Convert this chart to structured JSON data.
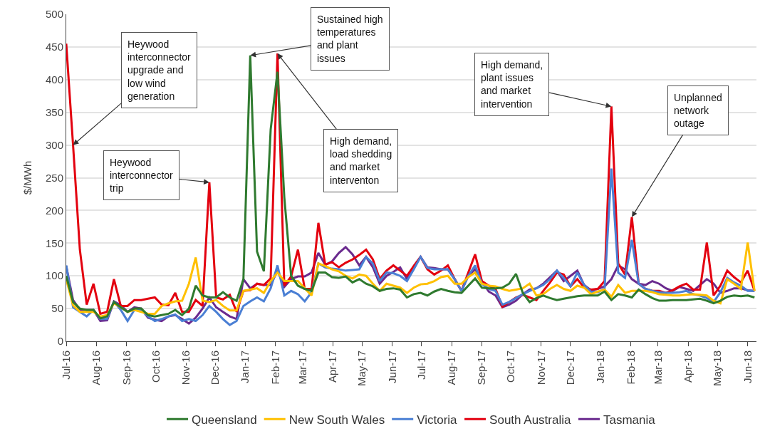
{
  "chart_data": {
    "type": "line",
    "ylabel": "$/MWh",
    "marker": "none",
    "line_style": "solid",
    "grid": "y",
    "legend": "bottom",
    "x": [
      "2016-07-01",
      "2016-07-08",
      "2016-07-15",
      "2016-07-22",
      "2016-07-29",
      "2016-08-05",
      "2016-08-12",
      "2016-08-19",
      "2016-08-26",
      "2016-09-02",
      "2016-09-09",
      "2016-09-16",
      "2016-09-23",
      "2016-09-30",
      "2016-10-07",
      "2016-10-14",
      "2016-10-21",
      "2016-10-28",
      "2016-11-04",
      "2016-11-11",
      "2016-11-18",
      "2016-11-25",
      "2016-12-02",
      "2016-12-09",
      "2016-12-16",
      "2016-12-23",
      "2016-12-30",
      "2017-01-06",
      "2017-01-13",
      "2017-01-20",
      "2017-01-27",
      "2017-02-03",
      "2017-02-10",
      "2017-02-17",
      "2017-02-24",
      "2017-03-03",
      "2017-03-10",
      "2017-03-17",
      "2017-03-24",
      "2017-03-31",
      "2017-04-07",
      "2017-04-14",
      "2017-04-21",
      "2017-04-28",
      "2017-05-05",
      "2017-05-12",
      "2017-05-19",
      "2017-05-26",
      "2017-06-02",
      "2017-06-09",
      "2017-06-16",
      "2017-06-23",
      "2017-06-30",
      "2017-07-07",
      "2017-07-14",
      "2017-07-21",
      "2017-07-28",
      "2017-08-04",
      "2017-08-11",
      "2017-08-18",
      "2017-08-25",
      "2017-09-01",
      "2017-09-08",
      "2017-09-15",
      "2017-09-22",
      "2017-09-29",
      "2017-10-06",
      "2017-10-13",
      "2017-10-20",
      "2017-10-27",
      "2017-11-03",
      "2017-11-10",
      "2017-11-17",
      "2017-11-24",
      "2017-12-01",
      "2017-12-08",
      "2017-12-15",
      "2017-12-22",
      "2017-12-29",
      "2018-01-05",
      "2018-01-12",
      "2018-01-19",
      "2018-01-26",
      "2018-02-02",
      "2018-02-09",
      "2018-02-16",
      "2018-02-23",
      "2018-03-02",
      "2018-03-09",
      "2018-03-16",
      "2018-03-23",
      "2018-03-30",
      "2018-04-06",
      "2018-04-13",
      "2018-04-20",
      "2018-04-27",
      "2018-05-04",
      "2018-05-11",
      "2018-05-18",
      "2018-05-25",
      "2018-06-01",
      "2018-06-08"
    ],
    "xlim": [
      "2016-07-01",
      "2018-06-10"
    ],
    "xticks": [
      {
        "value": "2016-07-01",
        "label": "Jul-16"
      },
      {
        "value": "2016-08-01",
        "label": "Aug-16"
      },
      {
        "value": "2016-09-01",
        "label": "Sep-16"
      },
      {
        "value": "2016-10-01",
        "label": "Oct-16"
      },
      {
        "value": "2016-11-01",
        "label": "Nov-16"
      },
      {
        "value": "2016-12-01",
        "label": "Dec-16"
      },
      {
        "value": "2017-01-01",
        "label": "Jan-17"
      },
      {
        "value": "2017-02-01",
        "label": "Feb-17"
      },
      {
        "value": "2017-03-01",
        "label": "Mar-17"
      },
      {
        "value": "2017-04-01",
        "label": "Apr-17"
      },
      {
        "value": "2017-05-01",
        "label": "May-17"
      },
      {
        "value": "2017-06-01",
        "label": "Jun-17"
      },
      {
        "value": "2017-07-01",
        "label": "Jul-17"
      },
      {
        "value": "2017-08-01",
        "label": "Aug-17"
      },
      {
        "value": "2017-09-01",
        "label": "Sep-17"
      },
      {
        "value": "2017-10-01",
        "label": "Oct-17"
      },
      {
        "value": "2017-11-01",
        "label": "Nov-17"
      },
      {
        "value": "2017-12-01",
        "label": "Dec-17"
      },
      {
        "value": "2018-01-01",
        "label": "Jan-18"
      },
      {
        "value": "2018-02-01",
        "label": "Feb-18"
      },
      {
        "value": "2018-03-01",
        "label": "Mar-18"
      },
      {
        "value": "2018-04-01",
        "label": "Apr-18"
      },
      {
        "value": "2018-05-01",
        "label": "May-18"
      },
      {
        "value": "2018-06-01",
        "label": "Jun-18"
      }
    ],
    "ylim": [
      0,
      500
    ],
    "yticks": [
      0,
      50,
      100,
      150,
      200,
      250,
      300,
      350,
      400,
      450,
      500
    ],
    "series": [
      {
        "name": "Queensland",
        "color": "#2f7a2f",
        "values": [
          100,
          60,
          50,
          48,
          48,
          35,
          38,
          60,
          52,
          45,
          50,
          50,
          40,
          38,
          40,
          42,
          48,
          40,
          50,
          85,
          70,
          67,
          67,
          75,
          67,
          62,
          95,
          437,
          137,
          107,
          324,
          412,
          220,
          100,
          85,
          80,
          77,
          105,
          105,
          98,
          97,
          99,
          90,
          95,
          88,
          84,
          77,
          80,
          81,
          79,
          67,
          72,
          74,
          70,
          76,
          80,
          77,
          75,
          74,
          85,
          96,
          82,
          81,
          81,
          82,
          88,
          103,
          74,
          60,
          66,
          70,
          66,
          63,
          65,
          67,
          69,
          70,
          70,
          70,
          76,
          63,
          72,
          70,
          67,
          79,
          72,
          66,
          62,
          62,
          63,
          63,
          63,
          64,
          65,
          62,
          58,
          62,
          68,
          70,
          69,
          70,
          67
        ]
      },
      {
        "name": "New South Wales",
        "color": "#ffc000",
        "values": [
          95,
          55,
          45,
          45,
          45,
          38,
          40,
          58,
          52,
          45,
          48,
          45,
          42,
          42,
          54,
          58,
          61,
          62,
          88,
          128,
          62,
          60,
          63,
          54,
          47,
          47,
          77,
          79,
          81,
          74,
          92,
          105,
          92,
          92,
          92,
          81,
          70,
          119,
          115,
          110,
          107,
          100,
          96,
          102,
          100,
          88,
          77,
          88,
          85,
          82,
          74,
          82,
          87,
          88,
          92,
          98,
          100,
          88,
          88,
          98,
          105,
          88,
          85,
          84,
          80,
          77,
          79,
          81,
          88,
          70,
          72,
          80,
          86,
          80,
          77,
          85,
          82,
          72,
          76,
          79,
          68,
          86,
          74,
          77,
          77,
          77,
          75,
          72,
          71,
          70,
          70,
          71,
          72,
          71,
          70,
          62,
          58,
          95,
          88,
          80,
          151,
          77
        ]
      },
      {
        "name": "Victoria",
        "color": "#4a7fd4",
        "values": [
          116,
          52,
          45,
          38,
          48,
          34,
          34,
          61,
          48,
          31,
          48,
          48,
          38,
          31,
          34,
          38,
          41,
          31,
          34,
          31,
          40,
          54,
          45,
          34,
          25,
          31,
          54,
          61,
          67,
          61,
          81,
          116,
          70,
          77,
          72,
          61,
          75,
          119,
          113,
          111,
          110,
          108,
          109,
          110,
          129,
          119,
          92,
          105,
          104,
          100,
          92,
          110,
          129,
          112,
          110,
          110,
          110,
          95,
          77,
          100,
          116,
          88,
          80,
          77,
          56,
          60,
          66,
          72,
          77,
          81,
          86,
          95,
          108,
          97,
          84,
          105,
          86,
          76,
          75,
          80,
          264,
          105,
          97,
          155,
          88,
          80,
          77,
          75,
          74,
          74,
          75,
          77,
          72,
          70,
          66,
          60,
          75,
          97,
          90,
          85,
          77,
          77
        ]
      },
      {
        "name": "South Australia",
        "color": "#e3000f",
        "values": [
          455,
          300,
          140,
          56,
          88,
          42,
          45,
          95,
          54,
          54,
          63,
          63,
          65,
          67,
          56,
          55,
          74,
          45,
          45,
          63,
          54,
          243,
          67,
          64,
          71,
          45,
          77,
          78,
          88,
          86,
          96,
          440,
          85,
          99,
          140,
          80,
          80,
          181,
          117,
          121,
          113,
          120,
          125,
          132,
          140,
          125,
          95,
          108,
          116,
          108,
          100,
          115,
          129,
          110,
          102,
          108,
          116,
          95,
          77,
          105,
          133,
          92,
          85,
          80,
          53,
          60,
          67,
          71,
          67,
          63,
          77,
          90,
          105,
          102,
          84,
          95,
          82,
          79,
          80,
          92,
          359,
          119,
          102,
          190,
          88,
          80,
          77,
          77,
          74,
          78,
          84,
          88,
          79,
          79,
          151,
          70,
          85,
          108,
          98,
          90,
          108,
          77
        ]
      },
      {
        "name": "Tasmania",
        "color": "#6a2a8e",
        "values": [
          115,
          63,
          48,
          48,
          48,
          31,
          32,
          61,
          55,
          45,
          52,
          50,
          36,
          33,
          31,
          38,
          40,
          34,
          27,
          36,
          50,
          67,
          52,
          45,
          38,
          34,
          95,
          81,
          88,
          86,
          86,
          108,
          83,
          95,
          99,
          99,
          105,
          135,
          117,
          122,
          135,
          144,
          133,
          116,
          129,
          113,
          88,
          100,
          106,
          113,
          95,
          115,
          129,
          113,
          112,
          110,
          110,
          95,
          77,
          100,
          110,
          92,
          76,
          70,
          52,
          56,
          62,
          72,
          79,
          81,
          88,
          98,
          108,
          92,
          100,
          108,
          86,
          78,
          80,
          84,
          95,
          116,
          110,
          95,
          88,
          86,
          92,
          88,
          81,
          77,
          83,
          80,
          77,
          86,
          95,
          88,
          74,
          77,
          81,
          81,
          78,
          77
        ]
      }
    ],
    "annotations": [
      {
        "text": "Heywood interconnector upgrade and low wind generation",
        "x": "2016-07-08",
        "y": 300
      },
      {
        "text": "Heywood interconnector trip",
        "x": "2016-11-25",
        "y": 243
      },
      {
        "text": "Sustained high temperatures and plant issues",
        "x": "2017-01-06",
        "y": 437
      },
      {
        "text": "High demand, load shedding and market interventon",
        "x": "2017-02-03",
        "y": 440
      },
      {
        "text": "High demand, plant issues and market intervention",
        "x": "2018-01-12",
        "y": 359
      },
      {
        "text": "Unplanned network outage",
        "x": "2018-02-02",
        "y": 190
      }
    ]
  }
}
